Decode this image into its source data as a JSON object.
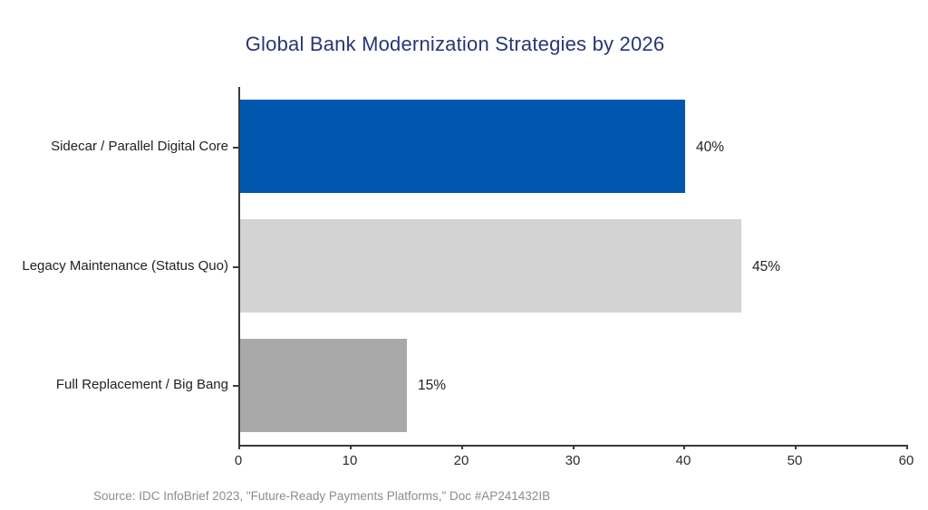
{
  "title": "Global Bank Modernization Strategies by 2026",
  "source": "Source: IDC InfoBrief 2023, \"Future-Ready Payments Platforms,\" Doc #AP241432IB",
  "colors": {
    "title_text": "#283577",
    "axis": "#3a3a3a",
    "category_text": "#212121",
    "value_text": "#212121",
    "source_text": "#8c8c8c",
    "bar_sidecar": "#0057ad",
    "bar_legacy": "#d3d3d3",
    "bar_full_replacement": "#a9a9a9"
  },
  "chart_data": {
    "type": "bar",
    "orientation": "horizontal",
    "title": "Global Bank Modernization Strategies by 2026",
    "categories": [
      "Sidecar / Parallel Digital Core",
      "Legacy Maintenance (Status Quo)",
      "Full Replacement / Big Bang"
    ],
    "values": [
      40,
      45,
      15
    ],
    "value_labels": [
      "40%",
      "45%",
      "15%"
    ],
    "bar_colors": [
      "#0057ad",
      "#d3d3d3",
      "#a9a9a9"
    ],
    "xlabel": "",
    "ylabel": "",
    "xlim": [
      0,
      60
    ],
    "xticks": [
      0,
      10,
      20,
      30,
      40,
      50,
      60
    ],
    "grid": false,
    "legend": null
  }
}
